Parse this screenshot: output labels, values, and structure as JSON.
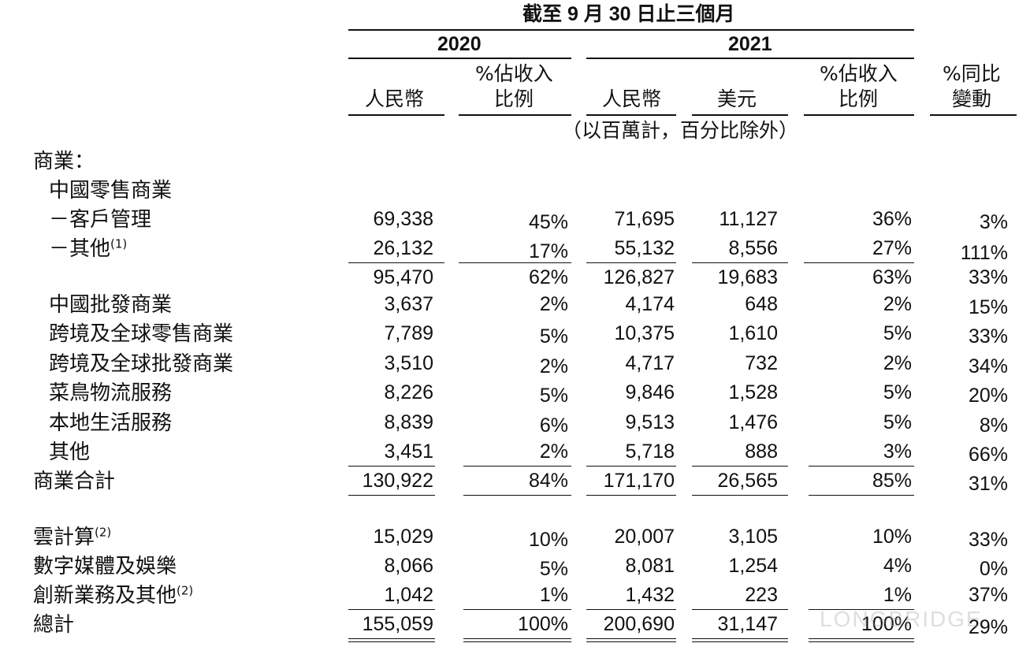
{
  "header": {
    "period": "截至 9 月 30 日止三個月",
    "year_2020": "2020",
    "year_2021": "2021",
    "col_rmb_2020": "人民幣",
    "col_pct_2020_l1": "%佔收入",
    "col_pct_2020_l2": "比例",
    "col_rmb_2021": "人民幣",
    "col_usd_2021": "美元",
    "col_pct_2021_l1": "%佔收入",
    "col_pct_2021_l2": "比例",
    "col_yoy_l1": "%同比",
    "col_yoy_l2": "變動",
    "unit_note": "（以百萬計，百分比除外）"
  },
  "section_commerce": "商業：",
  "subsection_china_retail": "中國零售商業",
  "rows": [
    {
      "label": "－客戶管理",
      "sup": "",
      "rmb2020": "69,338",
      "pct2020": "45%",
      "rmb2021": "71,695",
      "usd2021": "11,127",
      "pct2021": "36%",
      "yoy": "3%"
    },
    {
      "label": "－其他",
      "sup": "(1)",
      "rmb2020": "26,132",
      "pct2020": "17%",
      "rmb2021": "55,132",
      "usd2021": "8,556",
      "pct2021": "27%",
      "yoy": "111%"
    },
    {
      "label": "",
      "sup": "",
      "rmb2020": "95,470",
      "pct2020": "62%",
      "rmb2021": "126,827",
      "usd2021": "19,683",
      "pct2021": "63%",
      "yoy": "33%"
    },
    {
      "label": "中國批發商業",
      "sup": "",
      "rmb2020": "3,637",
      "pct2020": "2%",
      "rmb2021": "4,174",
      "usd2021": "648",
      "pct2021": "2%",
      "yoy": "15%"
    },
    {
      "label": "跨境及全球零售商業",
      "sup": "",
      "rmb2020": "7,789",
      "pct2020": "5%",
      "rmb2021": "10,375",
      "usd2021": "1,610",
      "pct2021": "5%",
      "yoy": "33%"
    },
    {
      "label": "跨境及全球批發商業",
      "sup": "",
      "rmb2020": "3,510",
      "pct2020": "2%",
      "rmb2021": "4,717",
      "usd2021": "732",
      "pct2021": "2%",
      "yoy": "34%"
    },
    {
      "label": "菜鳥物流服務",
      "sup": "",
      "rmb2020": "8,226",
      "pct2020": "5%",
      "rmb2021": "9,846",
      "usd2021": "1,528",
      "pct2021": "5%",
      "yoy": "20%"
    },
    {
      "label": "本地生活服務",
      "sup": "",
      "rmb2020": "8,839",
      "pct2020": "6%",
      "rmb2021": "9,513",
      "usd2021": "1,476",
      "pct2021": "5%",
      "yoy": "8%"
    },
    {
      "label": "其他",
      "sup": "",
      "rmb2020": "3,451",
      "pct2020": "2%",
      "rmb2021": "5,718",
      "usd2021": "888",
      "pct2021": "3%",
      "yoy": "66%"
    },
    {
      "label": "商業合計",
      "sup": "",
      "rmb2020": "130,922",
      "pct2020": "84%",
      "rmb2021": "171,170",
      "usd2021": "26,565",
      "pct2021": "85%",
      "yoy": "31%"
    },
    {
      "label": "雲計算",
      "sup": "(2)",
      "rmb2020": "15,029",
      "pct2020": "10%",
      "rmb2021": "20,007",
      "usd2021": "3,105",
      "pct2021": "10%",
      "yoy": "33%"
    },
    {
      "label": "數字媒體及娛樂",
      "sup": "",
      "rmb2020": "8,066",
      "pct2020": "5%",
      "rmb2021": "8,081",
      "usd2021": "1,254",
      "pct2021": "4%",
      "yoy": "0%"
    },
    {
      "label": "創新業務及其他",
      "sup": "(2)",
      "rmb2020": "1,042",
      "pct2020": "1%",
      "rmb2021": "1,432",
      "usd2021": "223",
      "pct2021": "1%",
      "yoy": "37%"
    },
    {
      "label": "總計",
      "sup": "",
      "rmb2020": "155,059",
      "pct2020": "100%",
      "rmb2021": "200,690",
      "usd2021": "31,147",
      "pct2021": "100%",
      "yoy": "29%"
    }
  ],
  "watermark": "LONGBRIDGE"
}
